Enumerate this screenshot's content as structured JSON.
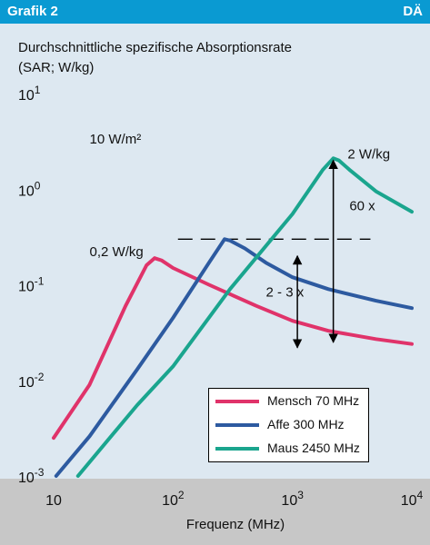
{
  "header": {
    "title": "Grafik 2",
    "logo": "DÄ"
  },
  "chart_data": {
    "type": "line",
    "title": "",
    "ylabel_line1": "Durchschnittliche spezifische Absorptionsrate",
    "ylabel_line2": "(SAR; W/kg)",
    "xlabel": "Frequenz (MHz)",
    "xscale": "log",
    "yscale": "log",
    "xlim": [
      10,
      10000
    ],
    "ylim": [
      0.001,
      10
    ],
    "grid": false,
    "legend_position": "bottom-right",
    "xticks": [
      {
        "value": 10,
        "base": "10",
        "exp": ""
      },
      {
        "value": 100,
        "base": "10",
        "exp": "2"
      },
      {
        "value": 1000,
        "base": "10",
        "exp": "3"
      },
      {
        "value": 10000,
        "base": "10",
        "exp": "4"
      }
    ],
    "yticks": [
      {
        "value": 10,
        "base": "10",
        "exp": "1"
      },
      {
        "value": 1,
        "base": "10",
        "exp": "0"
      },
      {
        "value": 0.1,
        "base": "10",
        "exp": "-1"
      },
      {
        "value": 0.01,
        "base": "10",
        "exp": "-2"
      },
      {
        "value": 0.001,
        "base": "10",
        "exp": "-3"
      }
    ],
    "series": [
      {
        "name": "Mensch 70 MHz",
        "color": "#e0336a",
        "points": [
          [
            10,
            0.0025
          ],
          [
            20,
            0.009
          ],
          [
            40,
            0.06
          ],
          [
            60,
            0.16
          ],
          [
            70,
            0.19
          ],
          [
            80,
            0.18
          ],
          [
            100,
            0.15
          ],
          [
            200,
            0.1
          ],
          [
            500,
            0.06
          ],
          [
            1000,
            0.042
          ],
          [
            2000,
            0.033
          ],
          [
            5000,
            0.027
          ],
          [
            10000,
            0.024
          ]
        ]
      },
      {
        "name": "Affe 300 MHz",
        "color": "#2d5aa0",
        "points": [
          [
            10.5,
            0.001
          ],
          [
            20,
            0.0026
          ],
          [
            50,
            0.013
          ],
          [
            100,
            0.045
          ],
          [
            200,
            0.17
          ],
          [
            270,
            0.3
          ],
          [
            300,
            0.29
          ],
          [
            400,
            0.24
          ],
          [
            600,
            0.17
          ],
          [
            1000,
            0.12
          ],
          [
            2000,
            0.09
          ],
          [
            5000,
            0.068
          ],
          [
            10000,
            0.057
          ]
        ]
      },
      {
        "name": "Maus 2450 MHz",
        "color": "#1aa58e",
        "points": [
          [
            16,
            0.001
          ],
          [
            50,
            0.0055
          ],
          [
            100,
            0.014
          ],
          [
            300,
            0.09
          ],
          [
            1000,
            0.55
          ],
          [
            1800,
            1.6
          ],
          [
            2200,
            2.1
          ],
          [
            2450,
            2.0
          ],
          [
            3000,
            1.6
          ],
          [
            5000,
            0.95
          ],
          [
            10000,
            0.58
          ]
        ]
      }
    ],
    "annotations": [
      {
        "text": "10 W/m²",
        "x": 20,
        "y": 3.0
      },
      {
        "text": "0,2 W/kg",
        "x": 20,
        "y": 0.2
      },
      {
        "text": "2 W/kg",
        "x": 2900,
        "y": 2.1
      },
      {
        "text": "60 x",
        "x": 3000,
        "y": 0.6
      },
      {
        "text": "2 - 3 x",
        "x": 600,
        "y": 0.075
      }
    ],
    "reference_line": {
      "y": 0.3,
      "x_from": 110,
      "x_to": 4500,
      "style": "dashed"
    },
    "arrows": [
      {
        "x": 2200,
        "y_from": 0.025,
        "y_to": 2.0
      },
      {
        "x": 1100,
        "y_from": 0.022,
        "y_to": 0.2
      }
    ]
  }
}
